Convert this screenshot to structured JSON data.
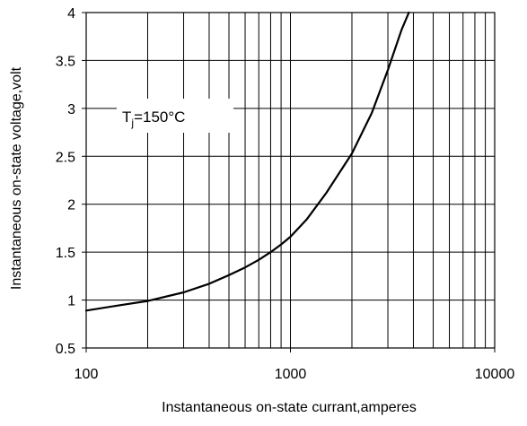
{
  "chart_data": {
    "type": "line",
    "title": "",
    "xlabel": "Instantaneous on-state currant,amperes",
    "ylabel": "Instantaneous on-state voltage,volt",
    "x_scale": "log",
    "y_scale": "linear",
    "xlim": [
      100,
      10000
    ],
    "ylim": [
      0.5,
      4
    ],
    "grid": true,
    "x_ticks": [
      {
        "value": 100,
        "label": "100"
      },
      {
        "value": 1000,
        "label": "1000"
      },
      {
        "value": 10000,
        "label": "10000"
      }
    ],
    "y_ticks": [
      {
        "value": 0.5,
        "label": "0.5"
      },
      {
        "value": 1,
        "label": "1"
      },
      {
        "value": 1.5,
        "label": "1.5"
      },
      {
        "value": 2,
        "label": "2"
      },
      {
        "value": 2.5,
        "label": "2.5"
      },
      {
        "value": 3,
        "label": "3"
      },
      {
        "value": 3.5,
        "label": "3.5"
      },
      {
        "value": 4,
        "label": "4"
      }
    ],
    "annotation": {
      "main": "T",
      "sub": "j",
      "rest": "=150°C"
    },
    "series": [
      {
        "color": "#000000",
        "x": [
          100,
          150,
          200,
          300,
          400,
          500,
          600,
          700,
          800,
          900,
          1000,
          1200,
          1500,
          2000,
          2500,
          3000,
          3500,
          3800
        ],
        "y": [
          0.89,
          0.95,
          0.99,
          1.08,
          1.17,
          1.26,
          1.34,
          1.42,
          1.5,
          1.58,
          1.66,
          1.84,
          2.12,
          2.53,
          2.95,
          3.4,
          3.82,
          4.0
        ]
      }
    ]
  }
}
